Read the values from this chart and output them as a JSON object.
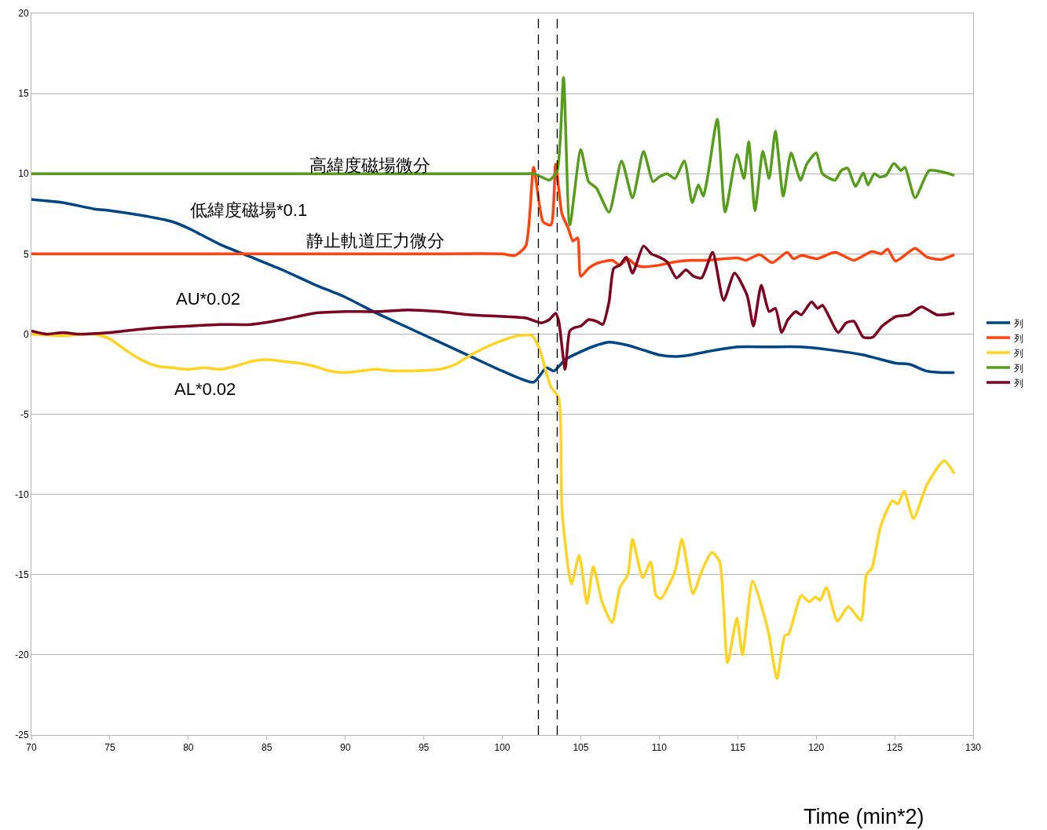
{
  "chart_data": {
    "type": "line",
    "xlabel": "Time (min*2)",
    "xlim": [
      70,
      130
    ],
    "xticks": [
      70,
      75,
      80,
      85,
      90,
      95,
      100,
      105,
      110,
      115,
      120,
      125,
      130
    ],
    "ylim": [
      -25,
      20
    ],
    "yticks": [
      -25,
      -20,
      -15,
      -10,
      -5,
      0,
      5,
      10,
      15,
      20
    ],
    "grid": "y",
    "legend": "right",
    "line_style": "solid",
    "marker": "none",
    "series": [
      {
        "name": "列",
        "color": "#004586",
        "x": [
          70,
          72,
          74,
          75,
          77,
          79,
          80,
          82,
          84,
          86,
          88,
          90,
          92,
          94,
          96,
          98,
          100,
          102,
          102.8,
          103.3,
          104,
          105,
          106,
          106.8,
          108,
          109,
          110,
          111,
          112,
          113,
          115,
          117,
          119,
          121,
          123,
          125,
          126,
          127,
          128,
          128.8
        ],
        "values": [
          8.4,
          8.2,
          7.8,
          7.7,
          7.4,
          7.0,
          6.6,
          5.6,
          4.8,
          4.0,
          3.1,
          2.3,
          1.3,
          0.4,
          -0.5,
          -1.4,
          -2.3,
          -3.0,
          -2.1,
          -2.3,
          -1.6,
          -1.1,
          -0.7,
          -0.5,
          -0.7,
          -1.0,
          -1.3,
          -1.4,
          -1.3,
          -1.1,
          -0.8,
          -0.8,
          -0.8,
          -1.0,
          -1.3,
          -1.8,
          -1.9,
          -2.3,
          -2.4,
          -2.4
        ]
      },
      {
        "name": "列",
        "color": "#ff420e",
        "x": [
          70,
          75,
          80,
          85,
          90,
          95,
          100,
          100.8,
          101.5,
          102,
          102.6,
          103.1,
          103.4,
          103.8,
          104.2,
          104.5,
          104.8,
          105,
          105.5,
          106,
          107,
          107.5,
          108,
          108.5,
          109,
          110,
          111,
          112,
          113,
          115,
          115.5,
          116.4,
          117.2,
          118.15,
          118.55,
          119.05,
          120.05,
          121.2,
          122.4,
          123.55,
          124.15,
          124.55,
          125.05,
          126.3,
          127.05,
          127.95,
          128.8
        ],
        "values": [
          5.0,
          5.0,
          5.0,
          5.0,
          5.0,
          5.0,
          5.0,
          4.9,
          5.5,
          10.4,
          7.0,
          6.8,
          10.6,
          7.5,
          6.6,
          5.8,
          6.0,
          3.6,
          4.1,
          4.4,
          4.6,
          4.3,
          4.7,
          4.3,
          4.2,
          4.3,
          4.5,
          4.6,
          4.6,
          4.75,
          4.6,
          4.95,
          4.45,
          5.1,
          4.7,
          4.9,
          4.7,
          5.1,
          4.6,
          5.15,
          5.0,
          5.3,
          4.55,
          5.35,
          4.8,
          4.65,
          4.95
        ]
      },
      {
        "name": "列",
        "color": "#ffd320",
        "x": [
          70,
          72,
          74,
          75,
          76,
          77,
          78,
          79,
          80,
          81,
          82,
          83,
          84,
          85,
          86,
          87,
          88,
          89,
          90,
          91,
          92,
          93,
          94,
          96,
          97,
          98,
          99,
          100,
          101,
          101.9,
          102.4,
          102.8,
          103.1,
          103.6,
          103.8,
          104.4,
          104.9,
          105.4,
          105.8,
          106.3,
          106.6,
          107,
          107.5,
          108,
          108.3,
          108.95,
          109.45,
          109.8,
          110.1,
          111,
          111.45,
          112.15,
          112.7,
          113.35,
          113.85,
          114.35,
          114.95,
          115.3,
          115.95,
          116.7,
          117,
          117.5,
          118,
          118.25,
          119.05,
          119.55,
          119.95,
          120.25,
          120.65,
          121.35,
          122.05,
          122.85,
          123.2,
          123.55,
          124.1,
          124.85,
          125.2,
          125.6,
          126.2,
          127.05,
          128.15,
          128.8
        ],
        "values": [
          0.0,
          -0.1,
          0.0,
          -0.3,
          -1.0,
          -1.6,
          -2.0,
          -2.1,
          -2.2,
          -2.1,
          -2.2,
          -2.0,
          -1.7,
          -1.6,
          -1.7,
          -1.8,
          -2.0,
          -2.3,
          -2.4,
          -2.3,
          -2.2,
          -2.3,
          -2.3,
          -2.2,
          -1.9,
          -1.3,
          -0.8,
          -0.4,
          -0.1,
          -0.1,
          -1.0,
          -2.4,
          -3.3,
          -4.0,
          -10.9,
          -15.6,
          -13.8,
          -16.8,
          -14.5,
          -16.5,
          -17.3,
          -18.0,
          -15.8,
          -15.0,
          -12.8,
          -15.2,
          -14.2,
          -16.3,
          -16.5,
          -14.8,
          -12.8,
          -16.2,
          -14.8,
          -13.6,
          -14.2,
          -20.5,
          -17.7,
          -20.0,
          -15.4,
          -17.6,
          -18.8,
          -21.5,
          -18.8,
          -18.7,
          -16.3,
          -16.7,
          -16.4,
          -16.6,
          -15.8,
          -17.9,
          -17.0,
          -17.85,
          -15.0,
          -14.6,
          -12.0,
          -10.4,
          -10.6,
          -9.8,
          -11.5,
          -9.4,
          -7.9,
          -8.7
        ]
      },
      {
        "name": "列",
        "color": "#579d1c",
        "x": [
          70,
          75,
          80,
          85,
          90,
          95,
          100,
          101.5,
          102,
          102.5,
          103,
          103.5,
          103.9,
          104.3,
          105,
          105.5,
          106,
          106.8,
          107.6,
          108.3,
          109,
          109.6,
          110,
          110.5,
          111,
          111.6,
          112.1,
          112.5,
          112.8,
          113.1,
          113.7,
          114.2,
          114.95,
          115.4,
          115.7,
          116.1,
          116.6,
          117,
          117.4,
          117.9,
          118.4,
          119,
          119.4,
          120,
          120.4,
          121.2,
          121.6,
          122,
          122.5,
          123,
          123.3,
          123.7,
          124.05,
          124.45,
          124.95,
          125.4,
          125.65,
          126.3,
          127.2,
          128.1,
          128.8
        ],
        "values": [
          10.0,
          10.0,
          10.0,
          10.0,
          10.0,
          10.0,
          10.0,
          10.0,
          10.0,
          9.8,
          9.6,
          10.2,
          16.0,
          6.8,
          11.5,
          9.5,
          9.1,
          7.6,
          10.8,
          8.5,
          11.4,
          9.5,
          9.8,
          10.0,
          9.7,
          10.8,
          8.2,
          9.3,
          8.6,
          9.9,
          13.4,
          7.6,
          11.2,
          9.7,
          12.0,
          7.7,
          11.4,
          9.7,
          12.65,
          8.6,
          11.3,
          9.6,
          10.6,
          11.3,
          10.0,
          9.6,
          10.2,
          10.35,
          9.2,
          10.05,
          9.3,
          10.0,
          9.8,
          9.9,
          10.65,
          10.2,
          10.4,
          8.5,
          10.2,
          10.1,
          9.9
        ]
      },
      {
        "name": "列",
        "color": "#7e0021",
        "x": [
          70,
          71,
          72,
          73,
          75,
          76,
          78,
          80,
          82,
          84,
          86,
          88,
          90,
          92,
          94,
          96,
          98,
          100,
          101.5,
          102.5,
          103,
          103.4,
          103.6,
          104,
          104.3,
          104.6,
          105,
          105.5,
          106,
          106.4,
          106.8,
          107.1,
          107.5,
          107.9,
          108.3,
          109,
          109.5,
          110,
          110.5,
          111.1,
          111.7,
          112.2,
          112.7,
          113.4,
          114.1,
          114.8,
          115.6,
          116,
          116.5,
          117,
          117.4,
          117.8,
          118.2,
          118.7,
          119.05,
          119.7,
          120.1,
          120.4,
          121.4,
          121.9,
          122.4,
          123,
          123.6,
          124.2,
          125.1,
          125.9,
          126.7,
          127.7,
          128.8
        ],
        "values": [
          0.2,
          0.0,
          0.1,
          0.0,
          0.1,
          0.2,
          0.4,
          0.5,
          0.6,
          0.6,
          0.9,
          1.3,
          1.4,
          1.4,
          1.5,
          1.4,
          1.2,
          1.1,
          1.0,
          0.7,
          0.9,
          1.3,
          0.8,
          -2.2,
          0.2,
          0.4,
          0.5,
          0.9,
          0.8,
          0.6,
          2.0,
          4.1,
          4.3,
          4.8,
          3.8,
          5.5,
          5.0,
          4.8,
          4.5,
          3.5,
          4.0,
          3.6,
          3.5,
          5.1,
          2.1,
          3.8,
          2.4,
          0.5,
          3.05,
          1.4,
          1.6,
          0.1,
          0.9,
          1.4,
          1.2,
          2.0,
          1.6,
          1.8,
          0.1,
          0.7,
          0.8,
          -0.2,
          -0.2,
          0.5,
          1.1,
          1.2,
          1.7,
          1.2,
          1.3
        ]
      }
    ],
    "ref_lines": [
      {
        "axis": "x",
        "value": 102.3,
        "color": "#000000",
        "line_style": "dashed"
      },
      {
        "axis": "x",
        "value": 103.5,
        "color": "#000000",
        "line_style": "dashed"
      }
    ],
    "annotations": [
      "高緯度磁場微分",
      "低緯度磁場*0.1",
      "静止軌道圧力微分",
      "AU*0.02",
      "AL*0.02"
    ]
  }
}
